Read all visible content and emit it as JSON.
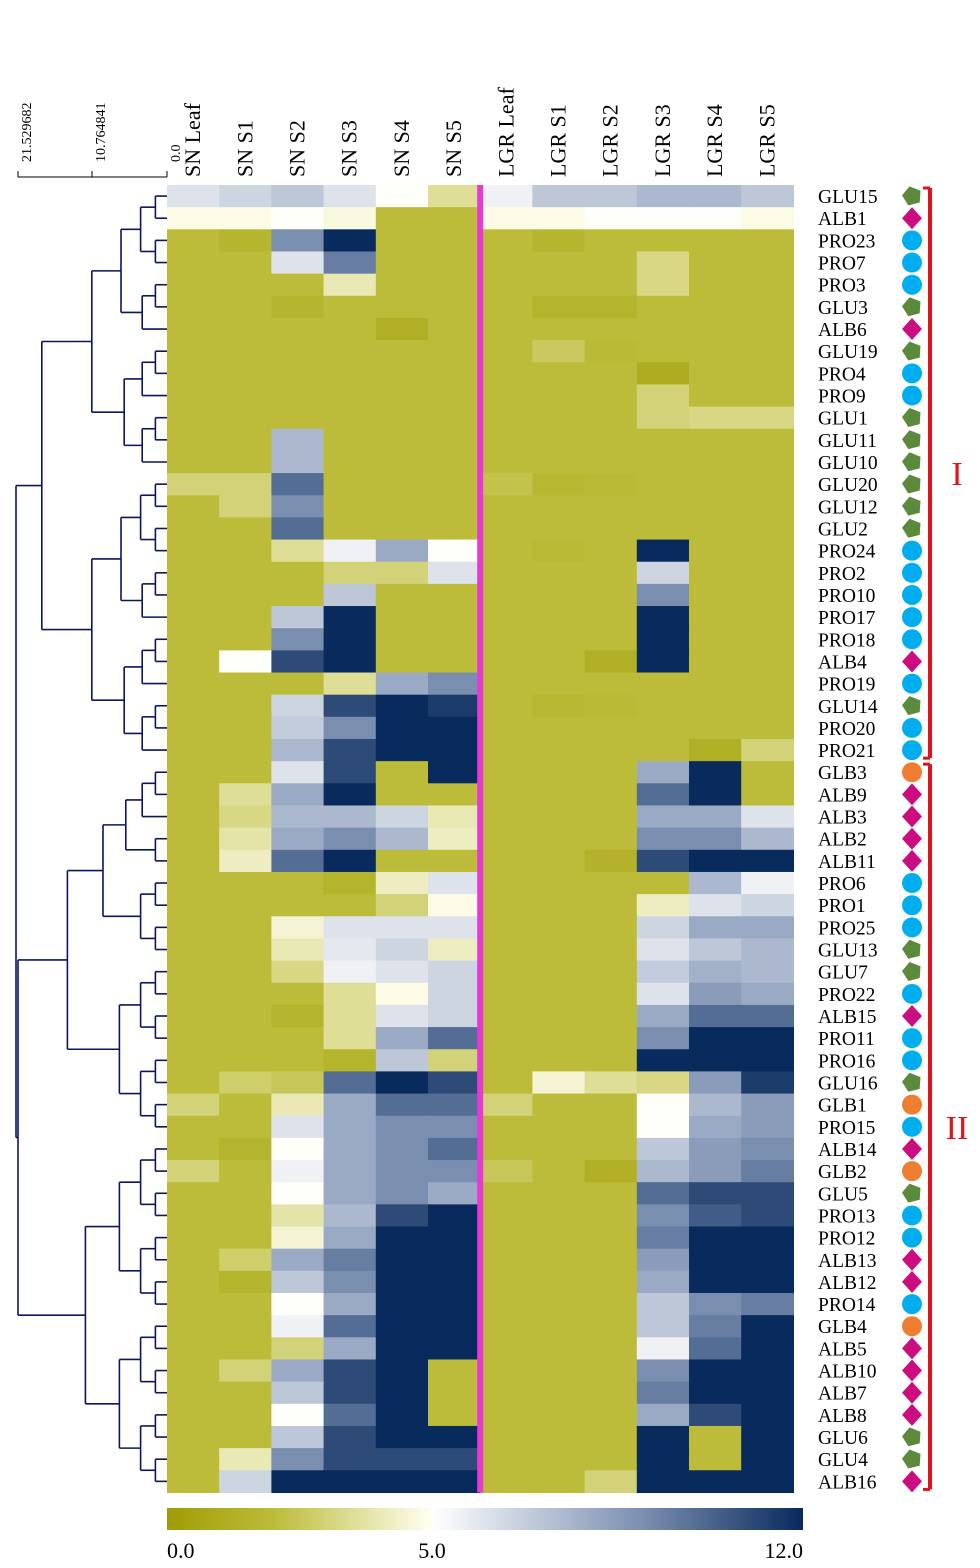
{
  "chart_data": {
    "type": "heatmap",
    "title": "",
    "xlabel": "",
    "ylabel": "",
    "columns": [
      "SN Leaf",
      "SN S1",
      "SN S2",
      "SN S3",
      "SN S4",
      "SN S5",
      "LGR Leaf",
      "LGR S1",
      "LGR S2",
      "LGR S3",
      "LGR S4",
      "LGR S5"
    ],
    "rows": [
      "GLU15",
      "ALB1",
      "PRO23",
      "PRO7",
      "PRO3",
      "GLU3",
      "ALB6",
      "GLU19",
      "PRO4",
      "PRO9",
      "GLU1",
      "GLU11",
      "GLU10",
      "GLU20",
      "GLU12",
      "GLU2",
      "PRO24",
      "PRO2",
      "PRO10",
      "PRO17",
      "PRO18",
      "ALB4",
      "PRO19",
      "GLU14",
      "PRO20",
      "PRO21",
      "GLB3",
      "ALB9",
      "ALB3",
      "ALB2",
      "ALB11",
      "PRO6",
      "PRO1",
      "PRO25",
      "GLU13",
      "GLU7",
      "PRO22",
      "ALB15",
      "PRO11",
      "PRO16",
      "GLU16",
      "GLB1",
      "PRO15",
      "ALB14",
      "GLB2",
      "GLU5",
      "PRO13",
      "PRO12",
      "ALB13",
      "ALB12",
      "PRO14",
      "GLB4",
      "ALB5",
      "ALB10",
      "ALB7",
      "ALB8",
      "GLU6",
      "GLU4",
      "ALB16"
    ],
    "values": [
      [
        6,
        6.5,
        7,
        6,
        5,
        3.5,
        5.5,
        7,
        7,
        7.5,
        7.5,
        7
      ],
      [
        4.8,
        4.8,
        5,
        4.7,
        2,
        2,
        4.8,
        4.8,
        5,
        5,
        5,
        4.8
      ],
      [
        2,
        1.6,
        9,
        12,
        2,
        2,
        2,
        1.6,
        2,
        2,
        2,
        2
      ],
      [
        2,
        2,
        6,
        9.5,
        2,
        2,
        2,
        2,
        2,
        3.2,
        2,
        2
      ],
      [
        2,
        2,
        2,
        4,
        2,
        2,
        2,
        2,
        2,
        3.2,
        2,
        2
      ],
      [
        2,
        2,
        1.6,
        2,
        2,
        2,
        2,
        1.5,
        1.5,
        2,
        2,
        2
      ],
      [
        2,
        2,
        2,
        2,
        1.2,
        2,
        2,
        2,
        2,
        2,
        2,
        2
      ],
      [
        2,
        2,
        2,
        2,
        2,
        2,
        2,
        2.6,
        1.9,
        2,
        2,
        2
      ],
      [
        2,
        2,
        2,
        2,
        2,
        2,
        2,
        2,
        2,
        1,
        2,
        2
      ],
      [
        2,
        2,
        2,
        2,
        2,
        2,
        2,
        2,
        2,
        3,
        2,
        2
      ],
      [
        2,
        2,
        2,
        2,
        2,
        2,
        2,
        2,
        2,
        3,
        3.2,
        3.2
      ],
      [
        2,
        2,
        7.5,
        2,
        2,
        2,
        2,
        2,
        2,
        2,
        2,
        2
      ],
      [
        2,
        2,
        7.5,
        2,
        2,
        2,
        2,
        2,
        2,
        2,
        2,
        2
      ],
      [
        3,
        3,
        10,
        2,
        2,
        2,
        2.3,
        1.7,
        1.8,
        2,
        2,
        2
      ],
      [
        2,
        3,
        9,
        2,
        2,
        2,
        2,
        2,
        2,
        2,
        2,
        2
      ],
      [
        2,
        2,
        10,
        2,
        2,
        2,
        2,
        2,
        2,
        2,
        2,
        2
      ],
      [
        2,
        2,
        3.5,
        5.5,
        8,
        5,
        2,
        1.8,
        2,
        12,
        2,
        2
      ],
      [
        2,
        2,
        2,
        3,
        3,
        6,
        2,
        2,
        2,
        6.5,
        2,
        2
      ],
      [
        2,
        2,
        2,
        7,
        2,
        2,
        2,
        2,
        2,
        9,
        2,
        2
      ],
      [
        2,
        2,
        7,
        12,
        2,
        2,
        2,
        2,
        2,
        12,
        2,
        2
      ],
      [
        2,
        2,
        9,
        12,
        2,
        2,
        2,
        2,
        2,
        12,
        2,
        2
      ],
      [
        2,
        5,
        11,
        12,
        2,
        2,
        2,
        2,
        1.2,
        12,
        2,
        2
      ],
      [
        2,
        2,
        2,
        3.5,
        8,
        9,
        2,
        2,
        2,
        2,
        2,
        2
      ],
      [
        2,
        2,
        6.5,
        11,
        12,
        11.5,
        2,
        1.7,
        1.9,
        2,
        2,
        2
      ],
      [
        2,
        2,
        6.8,
        9,
        12,
        12,
        2,
        2,
        2,
        2,
        2,
        2
      ],
      [
        2,
        2,
        7.5,
        11,
        12,
        12,
        2,
        2,
        2,
        2,
        1.2,
        3
      ],
      [
        2,
        2,
        6,
        11,
        2,
        12,
        2,
        2,
        2,
        8,
        12,
        2
      ],
      [
        2,
        3.5,
        8,
        12,
        2,
        2,
        2,
        2,
        2,
        10,
        12,
        2
      ],
      [
        2,
        3.2,
        7.5,
        7.5,
        6.5,
        4,
        2,
        2,
        2,
        8,
        8,
        6
      ],
      [
        2,
        3.8,
        8,
        9,
        7.5,
        4.2,
        2,
        2,
        2,
        9,
        9,
        7.5
      ],
      [
        2,
        4.2,
        10,
        12,
        2,
        2,
        2,
        2,
        1.4,
        11,
        12,
        12
      ],
      [
        2,
        2,
        2,
        1.5,
        4.2,
        6,
        2,
        2,
        2,
        2,
        7.5,
        5.5
      ],
      [
        2,
        2,
        2,
        2,
        3,
        4.8,
        2,
        2,
        2,
        4.2,
        6,
        6.5
      ],
      [
        2,
        2,
        4.5,
        6,
        6,
        6,
        2,
        2,
        2,
        6.5,
        8,
        8
      ],
      [
        2,
        2,
        4,
        5.8,
        6.5,
        4.2,
        2,
        2,
        2,
        6,
        7,
        7.5
      ],
      [
        2,
        2,
        3.2,
        5.5,
        6,
        6.5,
        2,
        2,
        2,
        6.8,
        7.8,
        7.5
      ],
      [
        2,
        2,
        2,
        3.5,
        4.8,
        6.5,
        2,
        2,
        2,
        6,
        8.5,
        8
      ],
      [
        2,
        2,
        1.5,
        3.5,
        6,
        6.5,
        2,
        2,
        2,
        8,
        10,
        10
      ],
      [
        2,
        2,
        2,
        3.5,
        8,
        10,
        2,
        2,
        2,
        9,
        12,
        12
      ],
      [
        2,
        2,
        2,
        1.5,
        7,
        3,
        2,
        2,
        2,
        12,
        12,
        12
      ],
      [
        2,
        2.8,
        2.5,
        10,
        12,
        11,
        2,
        4.5,
        3.5,
        3.2,
        8.5,
        11.5
      ],
      [
        3,
        2,
        4,
        8,
        10,
        10,
        3,
        2,
        2,
        5,
        7.5,
        8.5
      ],
      [
        2,
        2,
        6,
        8,
        9,
        9,
        2,
        2,
        2,
        5,
        8,
        8.5
      ],
      [
        2,
        1.5,
        5,
        8,
        9,
        10,
        2,
        2,
        2,
        7,
        8.5,
        9
      ],
      [
        3,
        2,
        5.5,
        8,
        9,
        9,
        2.5,
        2,
        1.2,
        7.5,
        8.5,
        9.5
      ],
      [
        2,
        2,
        5,
        8,
        9,
        8,
        2,
        2,
        2,
        10,
        11,
        11
      ],
      [
        2,
        2,
        3.8,
        7.5,
        11,
        12,
        2,
        2,
        2,
        9,
        10.5,
        11
      ],
      [
        2,
        2,
        4.5,
        8,
        12,
        12,
        2,
        2,
        2,
        9.5,
        12,
        12
      ],
      [
        2,
        2.8,
        8,
        9.5,
        12,
        12,
        2,
        2,
        2,
        8.5,
        12,
        12
      ],
      [
        2,
        1.5,
        7,
        9,
        12,
        12,
        2,
        2,
        2,
        8,
        12,
        12
      ],
      [
        2,
        2,
        5,
        8,
        12,
        12,
        2,
        2,
        2,
        7,
        9,
        9.5
      ],
      [
        2,
        2,
        5.5,
        10,
        12,
        12,
        2,
        2,
        2,
        7,
        9.5,
        12
      ],
      [
        2,
        2,
        3,
        8,
        12,
        12,
        2,
        2,
        2,
        5.5,
        10,
        12
      ],
      [
        2,
        3,
        8,
        11,
        12,
        2,
        2,
        2,
        2,
        9,
        12,
        12
      ],
      [
        2,
        2,
        7,
        11,
        12,
        2,
        2,
        2,
        2,
        9.5,
        12,
        12
      ],
      [
        2,
        2,
        5,
        10,
        12,
        2,
        2,
        2,
        2,
        8,
        11,
        12
      ],
      [
        2,
        2,
        7,
        11,
        12,
        12,
        2,
        2,
        2,
        12,
        2,
        12
      ],
      [
        2,
        4,
        9,
        11,
        11,
        11,
        2,
        2,
        2,
        12,
        2,
        12
      ],
      [
        2,
        6.5,
        12,
        12,
        12,
        12,
        2,
        2,
        3,
        12,
        12,
        12
      ]
    ],
    "colorbar": {
      "min": 0.0,
      "mid": 5.0,
      "max": 12.0,
      "ticks": [
        "0.0",
        "5.0",
        "12.0"
      ],
      "colors": [
        "#a09b05",
        "#bcbc3a",
        "#fffff2",
        "#ffffff",
        "#7a8eb0",
        "#082a5c"
      ]
    },
    "dendrogram_scale": [
      "21.529682",
      "10.764841",
      "0.0"
    ],
    "family_markers": {
      "GLU": {
        "shape": "pentagon",
        "color": "#5c8a3c"
      },
      "ALB": {
        "shape": "diamond",
        "color": "#cc0d80"
      },
      "PRO": {
        "shape": "circle",
        "color": "#00aeef"
      },
      "GLB": {
        "shape": "circle",
        "color": "#f07e32"
      }
    },
    "clusters": [
      {
        "label": "I",
        "first": 0,
        "last": 25,
        "color": "#e0151b"
      },
      {
        "label": "II",
        "first": 26,
        "last": 58,
        "color": "#e0151b"
      }
    ],
    "separator_color": "#e63ad2",
    "line_color": "#0b1560"
  }
}
